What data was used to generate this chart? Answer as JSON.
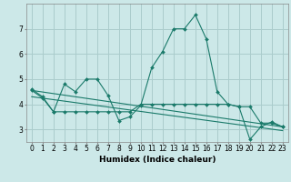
{
  "background_color": "#cce8e8",
  "grid_color": "#aacccc",
  "line_color": "#1a7a6a",
  "series": [
    {
      "x": [
        0,
        1,
        2,
        3,
        4,
        5,
        6,
        7,
        8,
        9,
        10,
        11,
        12,
        13,
        14,
        15,
        16,
        17,
        18,
        19,
        20,
        21,
        22,
        23
      ],
      "y": [
        4.6,
        4.3,
        3.7,
        4.8,
        4.5,
        5.0,
        5.0,
        4.35,
        3.35,
        3.5,
        3.95,
        5.45,
        6.1,
        7.0,
        7.0,
        7.55,
        6.6,
        4.5,
        4.0,
        3.9,
        2.6,
        3.1,
        3.3,
        3.1
      ],
      "markers": true
    },
    {
      "x": [
        0,
        1,
        2,
        3,
        4,
        5,
        6,
        7,
        8,
        9,
        10,
        11,
        12,
        13,
        14,
        15,
        16,
        17,
        18,
        19,
        20,
        21,
        22,
        23
      ],
      "y": [
        4.55,
        4.25,
        3.7,
        3.7,
        3.7,
        3.7,
        3.7,
        3.7,
        3.7,
        3.7,
        4.0,
        4.0,
        4.0,
        4.0,
        4.0,
        4.0,
        4.0,
        4.0,
        4.0,
        3.9,
        3.9,
        3.25,
        3.25,
        3.1
      ],
      "markers": true
    },
    {
      "x": [
        0,
        23
      ],
      "y": [
        4.55,
        3.1
      ],
      "markers": false
    },
    {
      "x": [
        0,
        23
      ],
      "y": [
        4.3,
        2.95
      ],
      "markers": false
    }
  ],
  "xlim": [
    -0.5,
    23.5
  ],
  "ylim": [
    2.5,
    8.0
  ],
  "yticks": [
    3,
    4,
    5,
    6,
    7
  ],
  "xticks": [
    0,
    1,
    2,
    3,
    4,
    5,
    6,
    7,
    8,
    9,
    10,
    11,
    12,
    13,
    14,
    15,
    16,
    17,
    18,
    19,
    20,
    21,
    22,
    23
  ],
  "xlabel": "Humidex (Indice chaleur)",
  "xlabel_fontsize": 6.5,
  "tick_fontsize": 5.5
}
